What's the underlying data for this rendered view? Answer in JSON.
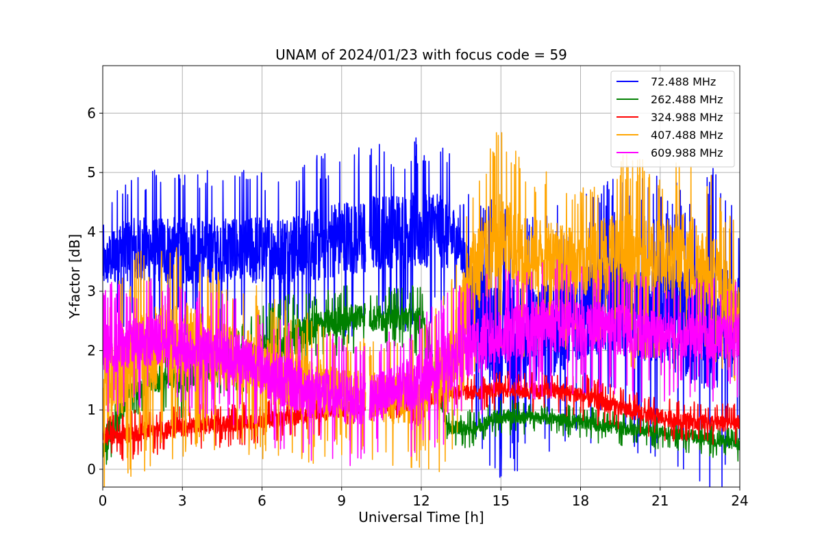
{
  "chart_data": {
    "type": "line",
    "title": "UNAM of 2024/01/23 with focus code = 59",
    "xlabel": "Universal Time [h]",
    "ylabel": "Y-factor [dB]",
    "xlim": [
      0,
      24
    ],
    "ylim": [
      -0.3,
      6.8
    ],
    "xticks": [
      "0",
      "3",
      "6",
      "9",
      "12",
      "15",
      "18",
      "21",
      "24"
    ],
    "yticks": [
      "0",
      "1",
      "2",
      "3",
      "4",
      "5",
      "6"
    ],
    "grid": true,
    "legend_position": "top-right",
    "gap_hours": [
      9.9,
      10.05
    ],
    "series": [
      {
        "name": " 72.488 MHz",
        "color": "#0000ff",
        "envelope": {
          "x": [
            0.0,
            0.5,
            1.0,
            2.0,
            3.0,
            4.0,
            5.0,
            6.0,
            7.0,
            8.0,
            9.0,
            9.9,
            10.05,
            11.0,
            12.0,
            12.5,
            13.0,
            13.5,
            14.0,
            15.0,
            16.0,
            17.0,
            18.0,
            19.0,
            20.0,
            21.0,
            22.0,
            23.0,
            24.0
          ],
          "low": [
            2.9,
            2.8,
            2.8,
            2.8,
            2.8,
            2.8,
            2.8,
            2.8,
            2.8,
            2.8,
            2.9,
            2.9,
            3.0,
            3.0,
            3.0,
            3.0,
            3.0,
            3.1,
            1.3,
            0.8,
            1.0,
            1.0,
            1.3,
            1.5,
            1.3,
            1.2,
            0.9,
            0.6,
            1.2
          ],
          "high": [
            3.9,
            4.5,
            4.6,
            4.6,
            4.6,
            4.6,
            4.6,
            4.6,
            4.6,
            4.8,
            4.9,
            4.95,
            5.0,
            5.0,
            5.1,
            5.1,
            5.0,
            4.4,
            4.0,
            3.8,
            3.6,
            3.8,
            4.0,
            4.3,
            4.2,
            4.2,
            4.0,
            4.2,
            3.8
          ]
        }
      },
      {
        "name": "262.488 MHz",
        "color": "#008000",
        "envelope": {
          "x": [
            0.0,
            0.5,
            1.0,
            2.0,
            3.0,
            4.0,
            5.0,
            6.0,
            7.0,
            8.0,
            9.0,
            9.9,
            10.05,
            11.0,
            12.0,
            13.0,
            14.0,
            15.0,
            16.0,
            17.0,
            18.0,
            19.0,
            20.0,
            21.0,
            22.0,
            23.0,
            24.0
          ],
          "low": [
            0.1,
            0.4,
            1.0,
            1.2,
            1.1,
            1.4,
            1.5,
            1.5,
            1.6,
            2.0,
            2.1,
            2.3,
            2.2,
            2.2,
            2.1,
            0.5,
            0.5,
            0.7,
            0.7,
            0.7,
            0.6,
            0.55,
            0.5,
            0.45,
            0.4,
            0.3,
            0.25
          ],
          "high": [
            0.5,
            1.0,
            1.6,
            1.8,
            1.9,
            2.0,
            2.2,
            2.5,
            2.7,
            2.8,
            2.9,
            2.95,
            2.9,
            2.9,
            3.0,
            0.9,
            0.9,
            1.1,
            1.05,
            1.0,
            1.0,
            0.9,
            0.85,
            0.8,
            0.75,
            0.7,
            0.6
          ]
        }
      },
      {
        "name": "324.988 MHz",
        "color": "#ff0000",
        "envelope": {
          "x": [
            0.0,
            1.0,
            2.0,
            3.0,
            4.0,
            5.0,
            6.0,
            7.0,
            8.0,
            9.0,
            10.0,
            11.0,
            12.0,
            13.0,
            14.0,
            15.0,
            16.0,
            17.0,
            18.0,
            19.0,
            20.0,
            21.0,
            22.0,
            23.0,
            24.0
          ],
          "low": [
            0.3,
            0.35,
            0.4,
            0.45,
            0.5,
            0.55,
            0.6,
            0.65,
            0.7,
            0.8,
            0.9,
            0.9,
            0.9,
            1.1,
            1.1,
            1.15,
            1.1,
            1.1,
            1.0,
            0.85,
            0.75,
            0.65,
            0.6,
            0.55,
            0.55
          ],
          "high": [
            0.8,
            0.9,
            0.9,
            0.95,
            1.0,
            1.0,
            1.05,
            1.1,
            1.15,
            1.2,
            1.25,
            1.3,
            1.4,
            1.5,
            1.5,
            1.55,
            1.55,
            1.55,
            1.5,
            1.35,
            1.2,
            1.1,
            1.05,
            1.0,
            1.0
          ]
        }
      },
      {
        "name": "407.488 MHz",
        "color": "#ffa500",
        "envelope": {
          "x": [
            0.0,
            0.5,
            1.0,
            2.0,
            3.0,
            4.0,
            5.0,
            6.0,
            7.0,
            8.0,
            9.0,
            10.0,
            11.0,
            12.0,
            13.0,
            13.5,
            14.0,
            15.0,
            16.0,
            17.0,
            18.0,
            19.0,
            20.0,
            21.0,
            22.0,
            23.0,
            24.0
          ],
          "low": [
            0.2,
            0.4,
            0.6,
            0.9,
            1.0,
            1.0,
            0.9,
            0.8,
            0.7,
            0.6,
            0.6,
            0.6,
            0.5,
            0.5,
            0.6,
            1.5,
            2.2,
            2.5,
            2.6,
            2.6,
            2.6,
            2.5,
            2.5,
            2.5,
            2.4,
            2.3,
            1.6
          ],
          "high": [
            2.3,
            2.8,
            3.0,
            3.2,
            3.3,
            3.0,
            2.8,
            2.6,
            2.4,
            2.2,
            2.0,
            1.9,
            1.9,
            2.0,
            2.6,
            3.6,
            4.6,
            5.2,
            4.6,
            4.6,
            4.4,
            4.7,
            4.8,
            4.6,
            4.8,
            4.4,
            3.5
          ]
        }
      },
      {
        "name": "609.988 MHz",
        "color": "#ff00ff",
        "envelope": {
          "x": [
            0.0,
            1.0,
            2.0,
            3.0,
            4.0,
            5.0,
            6.0,
            7.0,
            8.0,
            9.0,
            10.0,
            11.0,
            12.0,
            13.0,
            14.0,
            15.0,
            16.0,
            17.0,
            18.0,
            19.0,
            20.0,
            21.0,
            22.0,
            23.0,
            24.0
          ],
          "low": [
            1.3,
            1.4,
            1.5,
            1.4,
            1.3,
            1.2,
            1.0,
            0.7,
            0.6,
            0.5,
            0.5,
            0.6,
            0.8,
            1.0,
            1.3,
            1.5,
            1.6,
            1.7,
            1.7,
            1.7,
            1.6,
            1.6,
            1.6,
            1.6,
            1.6
          ],
          "high": [
            2.8,
            2.8,
            2.9,
            2.8,
            2.7,
            2.6,
            2.4,
            2.2,
            2.0,
            1.9,
            1.9,
            2.0,
            2.3,
            2.6,
            2.9,
            3.0,
            3.1,
            3.2,
            3.1,
            3.1,
            3.0,
            2.9,
            2.9,
            2.9,
            2.9
          ]
        }
      }
    ]
  }
}
